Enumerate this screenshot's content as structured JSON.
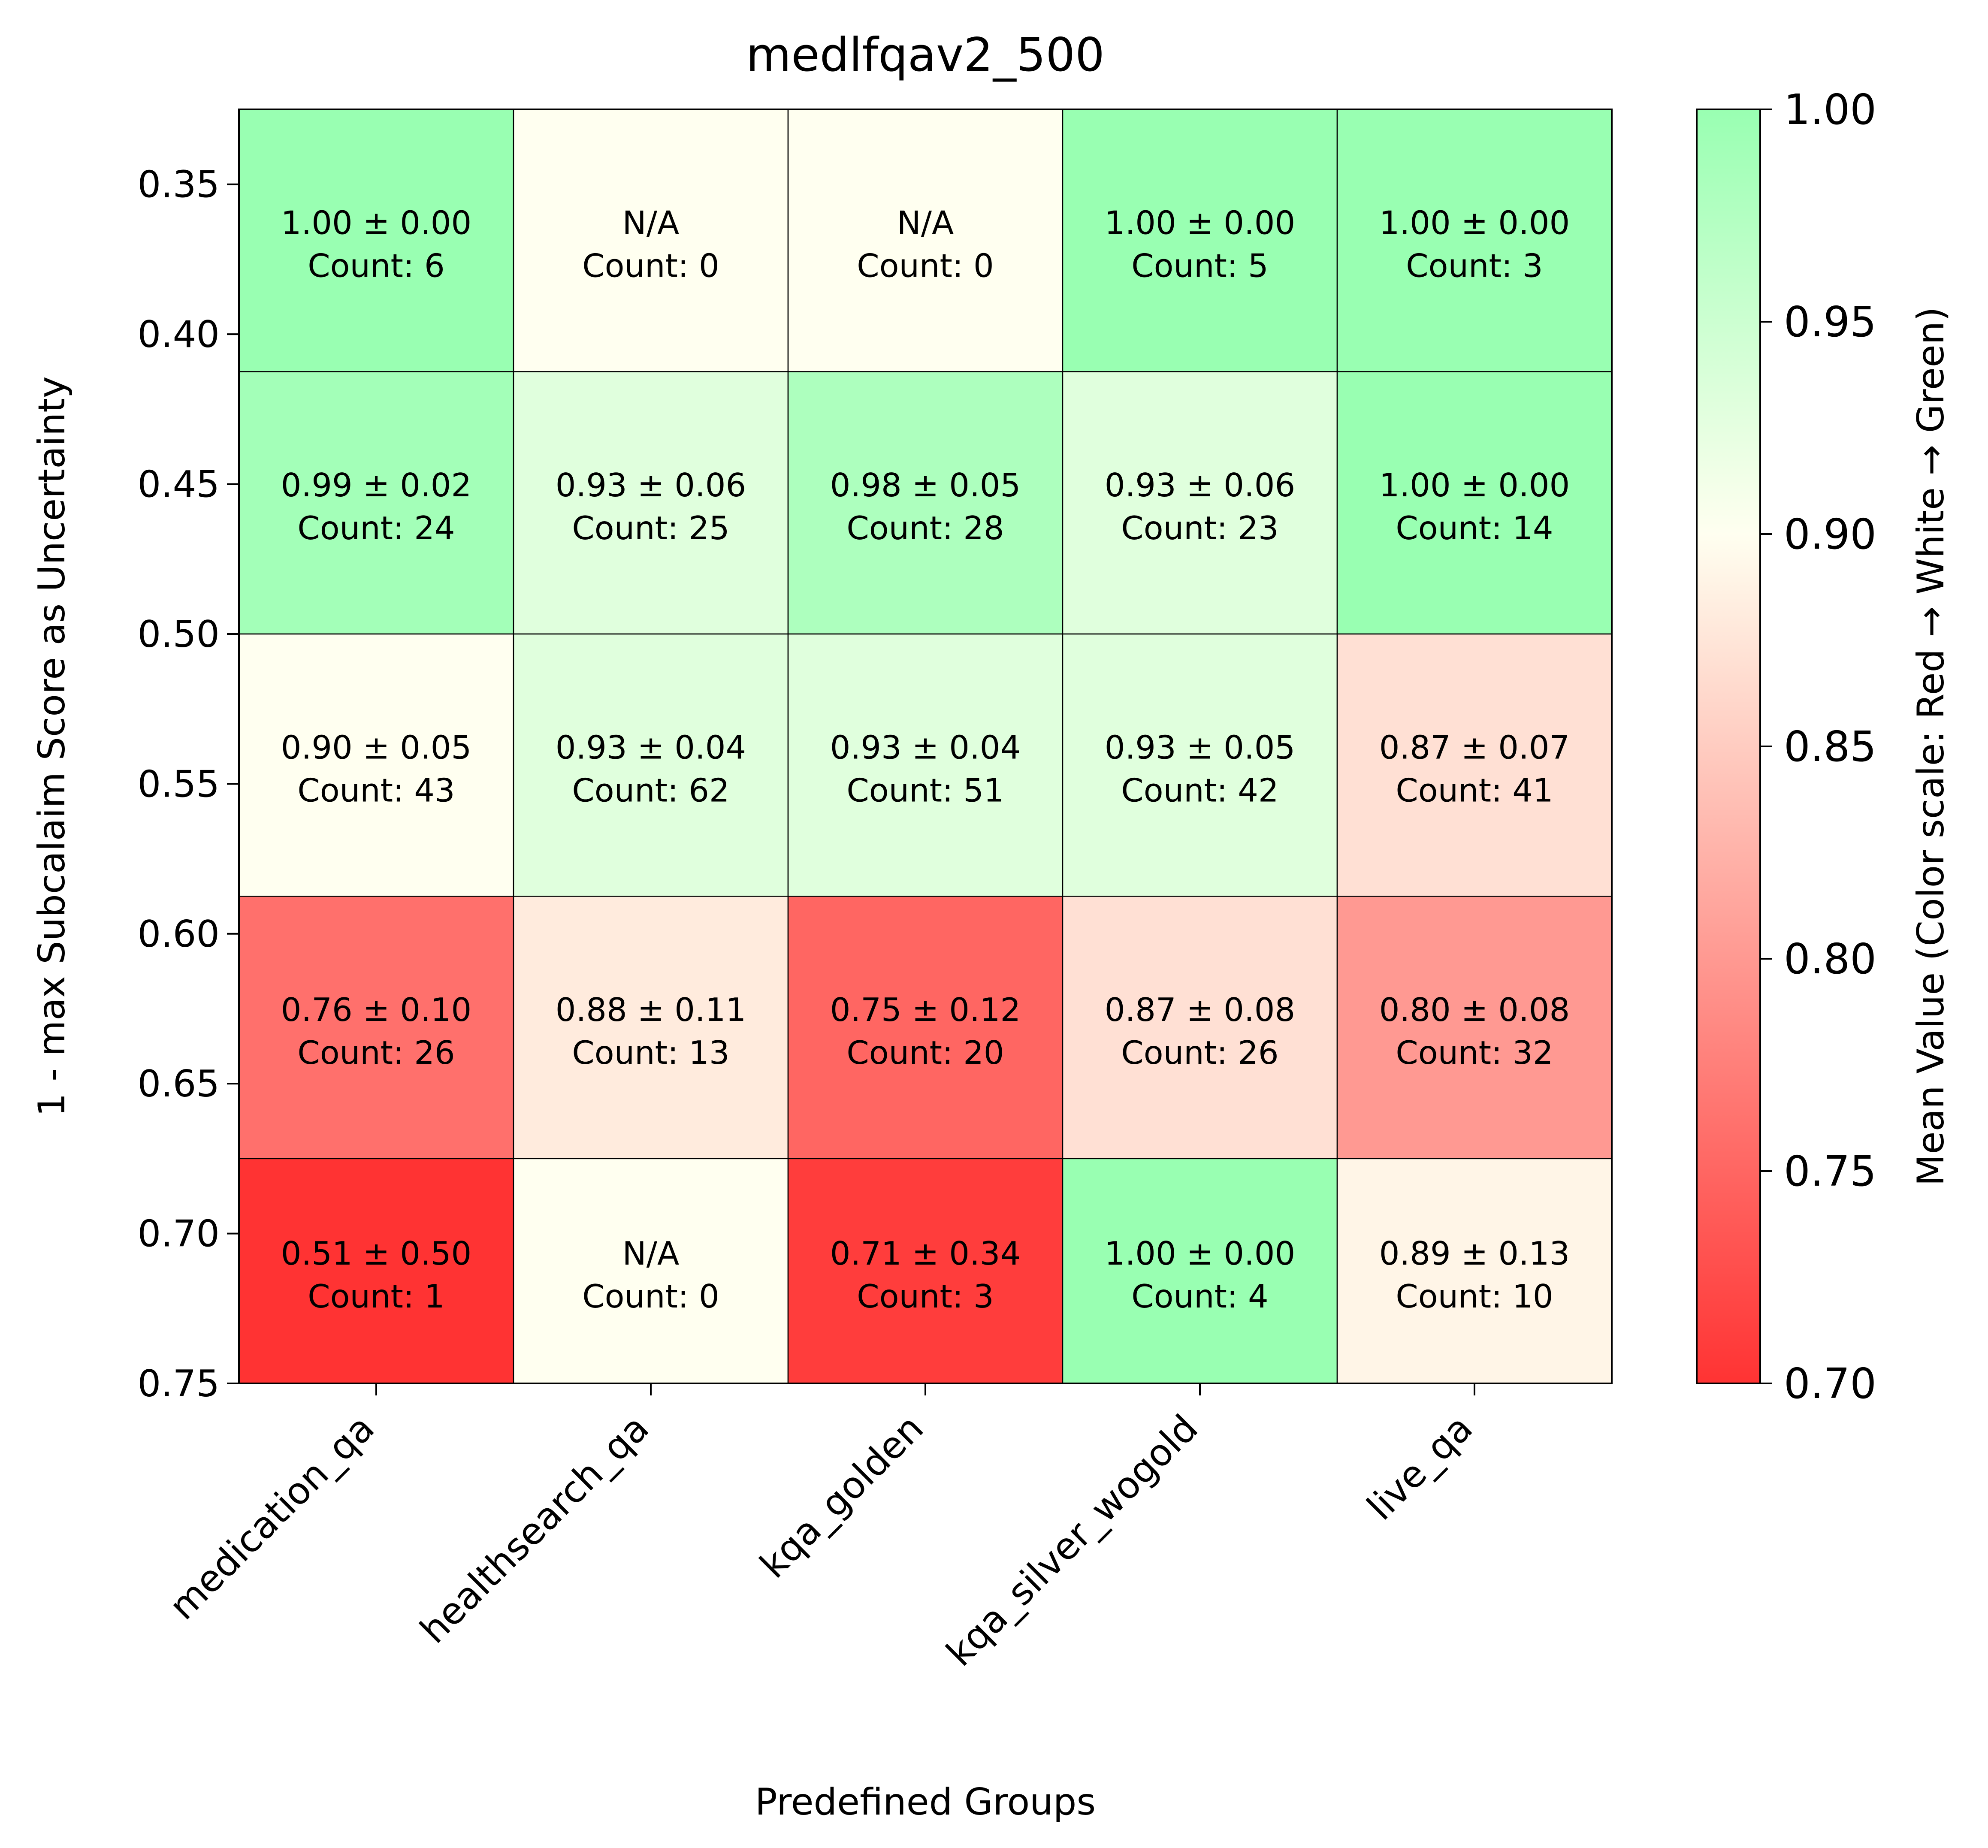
{
  "chart_data": {
    "type": "heatmap",
    "title": "medlfqav2_500",
    "xlabel": "Predefined Groups",
    "ylabel": "1 - max Subcalaim Score as Uncertainty",
    "colorbar_label": "Mean Value (Color scale: Red → White → Green)",
    "categories": [
      "medication_qa",
      "healthsearch_qa",
      "kqa_golden",
      "kqa_silver_wogold",
      "live_qa"
    ],
    "y_ticks": [
      "0.35",
      "0.40",
      "0.45",
      "0.50",
      "0.55",
      "0.60",
      "0.65",
      "0.70",
      "0.75"
    ],
    "ylim": [
      0.325,
      0.75
    ],
    "y_tick_values": [
      0.35,
      0.4,
      0.45,
      0.5,
      0.55,
      0.6,
      0.65,
      0.7,
      0.75
    ],
    "y_bins": [
      [
        0.325,
        0.4125
      ],
      [
        0.4125,
        0.5
      ],
      [
        0.5,
        0.5875
      ],
      [
        0.5875,
        0.675
      ],
      [
        0.675,
        0.75
      ]
    ],
    "colorbar_ticks": [
      "1.00",
      "0.95",
      "0.90",
      "0.85",
      "0.80",
      "0.75",
      "0.70"
    ],
    "colorbar_range": [
      0.7,
      1.0
    ],
    "colors": {
      "low": "#ff3333",
      "mid": "#fffff0",
      "high": "#99ffb2"
    },
    "cells": [
      [
        {
          "mean": 1.0,
          "std": 0.0,
          "count": 6,
          "line1": "1.00 ± 0.00",
          "line2": "Count: 6"
        },
        {
          "mean": null,
          "std": null,
          "count": 0,
          "line1": "N/A",
          "line2": "Count: 0"
        },
        {
          "mean": null,
          "std": null,
          "count": 0,
          "line1": "N/A",
          "line2": "Count: 0"
        },
        {
          "mean": 1.0,
          "std": 0.0,
          "count": 5,
          "line1": "1.00 ± 0.00",
          "line2": "Count: 5"
        },
        {
          "mean": 1.0,
          "std": 0.0,
          "count": 3,
          "line1": "1.00 ± 0.00",
          "line2": "Count: 3"
        }
      ],
      [
        {
          "mean": 0.99,
          "std": 0.02,
          "count": 24,
          "line1": "0.99 ± 0.02",
          "line2": "Count: 24"
        },
        {
          "mean": 0.93,
          "std": 0.06,
          "count": 25,
          "line1": "0.93 ± 0.06",
          "line2": "Count: 25"
        },
        {
          "mean": 0.98,
          "std": 0.05,
          "count": 28,
          "line1": "0.98 ± 0.05",
          "line2": "Count: 28"
        },
        {
          "mean": 0.93,
          "std": 0.06,
          "count": 23,
          "line1": "0.93 ± 0.06",
          "line2": "Count: 23"
        },
        {
          "mean": 1.0,
          "std": 0.0,
          "count": 14,
          "line1": "1.00 ± 0.00",
          "line2": "Count: 14"
        }
      ],
      [
        {
          "mean": 0.9,
          "std": 0.05,
          "count": 43,
          "line1": "0.90 ± 0.05",
          "line2": "Count: 43"
        },
        {
          "mean": 0.93,
          "std": 0.04,
          "count": 62,
          "line1": "0.93 ± 0.04",
          "line2": "Count: 62"
        },
        {
          "mean": 0.93,
          "std": 0.04,
          "count": 51,
          "line1": "0.93 ± 0.04",
          "line2": "Count: 51"
        },
        {
          "mean": 0.93,
          "std": 0.05,
          "count": 42,
          "line1": "0.93 ± 0.05",
          "line2": "Count: 42"
        },
        {
          "mean": 0.87,
          "std": 0.07,
          "count": 41,
          "line1": "0.87 ± 0.07",
          "line2": "Count: 41"
        }
      ],
      [
        {
          "mean": 0.76,
          "std": 0.1,
          "count": 26,
          "line1": "0.76 ± 0.10",
          "line2": "Count: 26"
        },
        {
          "mean": 0.88,
          "std": 0.11,
          "count": 13,
          "line1": "0.88 ± 0.11",
          "line2": "Count: 13"
        },
        {
          "mean": 0.75,
          "std": 0.12,
          "count": 20,
          "line1": "0.75 ± 0.12",
          "line2": "Count: 20"
        },
        {
          "mean": 0.87,
          "std": 0.08,
          "count": 26,
          "line1": "0.87 ± 0.08",
          "line2": "Count: 26"
        },
        {
          "mean": 0.8,
          "std": 0.08,
          "count": 32,
          "line1": "0.80 ± 0.08",
          "line2": "Count: 32"
        }
      ],
      [
        {
          "mean": 0.51,
          "std": 0.5,
          "count": 1,
          "line1": "0.51 ± 0.50",
          "line2": "Count: 1"
        },
        {
          "mean": null,
          "std": null,
          "count": 0,
          "line1": "N/A",
          "line2": "Count: 0"
        },
        {
          "mean": 0.71,
          "std": 0.34,
          "count": 3,
          "line1": "0.71 ± 0.34",
          "line2": "Count: 3"
        },
        {
          "mean": 1.0,
          "std": 0.0,
          "count": 4,
          "line1": "1.00 ± 0.00",
          "line2": "Count: 4"
        },
        {
          "mean": 0.89,
          "std": 0.13,
          "count": 10,
          "line1": "0.89 ± 0.13",
          "line2": "Count: 10"
        }
      ]
    ]
  }
}
